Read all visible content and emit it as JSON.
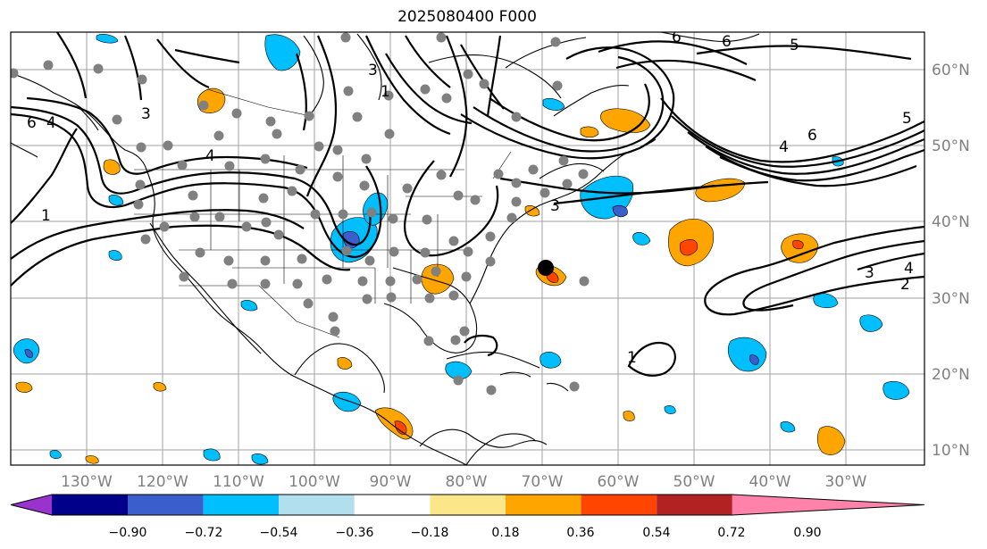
{
  "title": "2025080400 F000",
  "lat_labels": [
    "60°N",
    "50°N",
    "40°N",
    "30°N",
    "20°N",
    "10°N"
  ],
  "lon_labels": [
    "130°W",
    "120°W",
    "110°W",
    "100°W",
    "90°W",
    "80°W",
    "70°W",
    "60°W",
    "50°W",
    "40°W",
    "30°W"
  ],
  "colorbar": {
    "ticks": [
      "−0.90",
      "−0.72",
      "−0.54",
      "−0.36",
      "−0.18",
      "0.18",
      "0.36",
      "0.54",
      "0.72",
      "0.90"
    ],
    "colors": [
      "#9a32cd",
      "#00008b",
      "#3a5fcd",
      "#00bfff",
      "#b2dfee",
      "#ffffff",
      "#fce68a",
      "#ffa500",
      "#ff4500",
      "#b22222",
      "#ff82ab"
    ],
    "extend": "both"
  },
  "contour_labels": [
    "6",
    "4",
    "3",
    "4",
    "1",
    "1",
    "3",
    "6",
    "6",
    "5",
    "3",
    "4",
    "6",
    "5",
    "3",
    "4",
    "2",
    "1"
  ],
  "colors": {
    "grid": "#a0a0a0",
    "stations": "#808080",
    "marker": "#000000"
  }
}
